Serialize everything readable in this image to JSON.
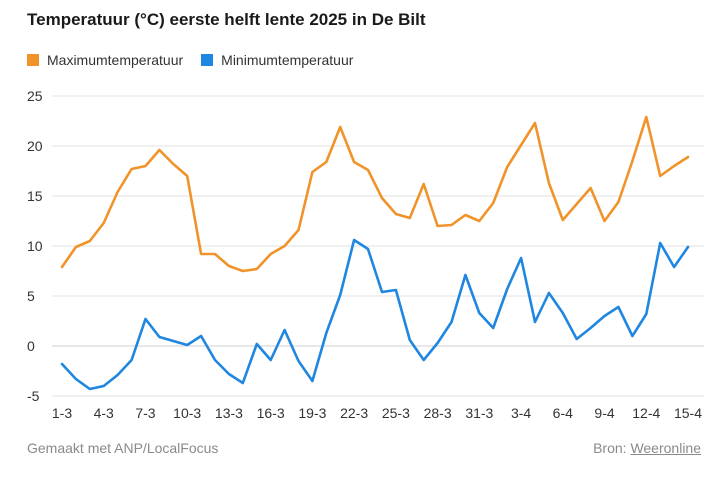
{
  "chart_data": {
    "type": "line",
    "title": "Temperatuur (°C) eerste helft lente 2025 in De Bilt",
    "xlabel": "",
    "ylabel": "",
    "ylim": [
      -5,
      25
    ],
    "yticks": [
      25,
      20,
      15,
      10,
      5,
      0,
      -5
    ],
    "grid": true,
    "legend_position": "top-left",
    "x": [
      "1-3",
      "2-3",
      "3-3",
      "4-3",
      "5-3",
      "6-3",
      "7-3",
      "8-3",
      "9-3",
      "10-3",
      "11-3",
      "12-3",
      "13-3",
      "14-3",
      "15-3",
      "16-3",
      "17-3",
      "18-3",
      "19-3",
      "20-3",
      "21-3",
      "22-3",
      "23-3",
      "24-3",
      "25-3",
      "26-3",
      "27-3",
      "28-3",
      "29-3",
      "30-3",
      "31-3",
      "1-4",
      "2-4",
      "3-4",
      "4-4",
      "5-4",
      "6-4",
      "7-4",
      "8-4",
      "9-4",
      "10-4",
      "11-4",
      "12-4",
      "13-4",
      "14-4",
      "15-4"
    ],
    "xtick_labels": [
      "1-3",
      "4-3",
      "7-3",
      "10-3",
      "13-3",
      "16-3",
      "19-3",
      "22-3",
      "25-3",
      "28-3",
      "31-3",
      "3-4",
      "6-4",
      "9-4",
      "12-4",
      "15-4"
    ],
    "series": [
      {
        "name": "Maximumtemperatuur",
        "color": "#f0932b",
        "values": [
          7.9,
          9.9,
          10.5,
          12.3,
          15.4,
          17.7,
          18.0,
          19.6,
          18.2,
          17.0,
          9.2,
          9.2,
          8.0,
          7.5,
          7.7,
          9.2,
          10.0,
          11.6,
          17.4,
          18.4,
          21.9,
          18.4,
          17.6,
          14.8,
          13.2,
          12.8,
          16.2,
          12.0,
          12.1,
          13.1,
          12.5,
          14.3,
          17.9,
          20.1,
          22.3,
          16.3,
          12.6,
          14.2,
          15.8,
          12.5,
          14.4,
          18.5,
          22.9,
          17.0,
          18.0,
          18.9
        ]
      },
      {
        "name": "Minimumtemperatuur",
        "color": "#1f87e0",
        "values": [
          -1.8,
          -3.3,
          -4.3,
          -4.0,
          -2.9,
          -1.4,
          2.7,
          0.9,
          0.5,
          0.1,
          1.0,
          -1.4,
          -2.8,
          -3.7,
          0.2,
          -1.4,
          1.6,
          -1.5,
          -3.5,
          1.3,
          5.1,
          10.6,
          9.7,
          5.4,
          5.6,
          0.6,
          -1.4,
          0.3,
          2.4,
          7.1,
          3.3,
          1.8,
          5.7,
          8.8,
          2.4,
          5.3,
          3.3,
          0.7,
          1.8,
          3.0,
          3.9,
          1.0,
          3.2,
          10.3,
          7.9,
          9.9
        ]
      }
    ]
  },
  "footer": {
    "made_with": "Gemaakt met ANP/LocalFocus",
    "source_label": "Bron:",
    "source_link": "Weeronline"
  }
}
